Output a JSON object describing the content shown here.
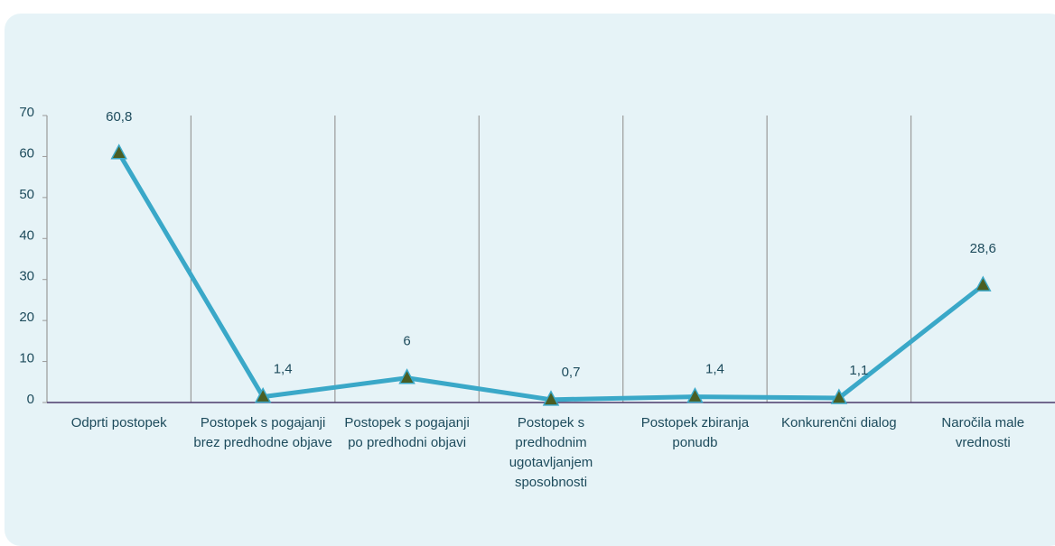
{
  "chart_data": {
    "type": "line",
    "categories": [
      "Odprti postopek",
      "Postopek s pogajanji brez predhodne objave",
      "Postopek s pogajanji po predhodni objavi",
      "Postopek s predhodnim ugotavljanjem sposobnosti",
      "Postopek zbiranja ponudb",
      "Konkurenčni dialog",
      "Naročila male vrednosti"
    ],
    "series": [
      {
        "color": "#3aa8c8",
        "marker_color": "#4a5e23",
        "values": [
          60.8,
          1.4,
          6,
          0.7,
          1.4,
          1.1,
          28.6
        ],
        "value_labels": [
          "60,8",
          "1,4",
          "6",
          "0,7",
          "1,4",
          "1,1",
          "28,6"
        ]
      }
    ],
    "ylim": [
      0,
      70
    ],
    "yticks": [
      0,
      10,
      20,
      30,
      40,
      50,
      60,
      70
    ]
  }
}
